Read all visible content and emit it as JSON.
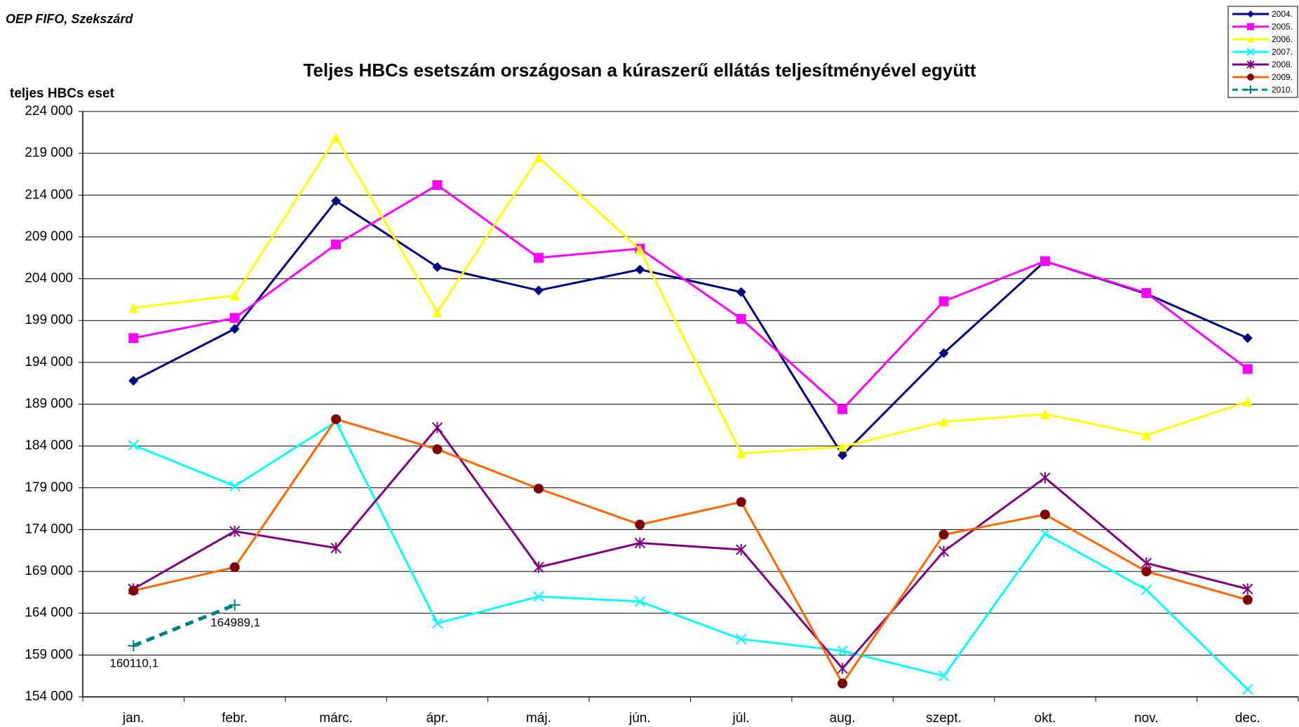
{
  "header": "OEP FIFO, Szekszárd",
  "chart_data": {
    "type": "line",
    "title": "Teljes HBCs esetszám országosan a kúraszerű ellátás teljesítményével együtt",
    "y_label": "teljes HBCs eset",
    "categories": [
      "jan.",
      "febr.",
      "márc.",
      "ápr.",
      "máj.",
      "jún.",
      "júl.",
      "aug.",
      "szept.",
      "okt.",
      "nov.",
      "dec."
    ],
    "ylim": [
      154000,
      224000
    ],
    "yticks": [
      {
        "value": 154000,
        "label": "154 000"
      },
      {
        "value": 159000,
        "label": "159 000"
      },
      {
        "value": 164000,
        "label": "164 000"
      },
      {
        "value": 169000,
        "label": "169 000"
      },
      {
        "value": 174000,
        "label": "174 000"
      },
      {
        "value": 179000,
        "label": "179 000"
      },
      {
        "value": 184000,
        "label": "184 000"
      },
      {
        "value": 189000,
        "label": "189 000"
      },
      {
        "value": 194000,
        "label": "194 000"
      },
      {
        "value": 199000,
        "label": "199 000"
      },
      {
        "value": 204000,
        "label": "204 000"
      },
      {
        "value": 209000,
        "label": "209 000"
      },
      {
        "value": 214000,
        "label": "214 000"
      },
      {
        "value": 219000,
        "label": "219 000"
      },
      {
        "value": 224000,
        "label": "224 000"
      }
    ],
    "grid": true,
    "legend": "top-right",
    "series": [
      {
        "name": "2004.",
        "color": "#000080",
        "marker": "diamond",
        "values": [
          191800,
          198000,
          213300,
          205400,
          202600,
          205100,
          202400,
          182900,
          195100,
          206100,
          202200,
          196900
        ]
      },
      {
        "name": "2005.",
        "color": "#ff00ff",
        "marker": "square",
        "values": [
          196900,
          199300,
          208100,
          215200,
          206500,
          207600,
          199200,
          188400,
          201300,
          206100,
          202300,
          193200
        ]
      },
      {
        "name": "2006.",
        "color": "#ffff00",
        "marker": "triangle",
        "values": [
          200500,
          202000,
          220900,
          200000,
          218500,
          207500,
          183100,
          183900,
          186900,
          187800,
          185300,
          189300
        ]
      },
      {
        "name": "2007.",
        "color": "#00ffff",
        "marker": "x",
        "values": [
          184100,
          179200,
          186900,
          162800,
          166000,
          165400,
          160900,
          159500,
          156500,
          173500,
          166800,
          154900
        ]
      },
      {
        "name": "2008.",
        "color": "#800080",
        "marker": "star",
        "values": [
          166900,
          173800,
          171800,
          186200,
          169500,
          172400,
          171600,
          157400,
          171400,
          180200,
          170000,
          166900
        ]
      },
      {
        "name": "2009.",
        "color": "#ff6600",
        "marker": "circle",
        "values": [
          166700,
          169500,
          187200,
          183600,
          178900,
          174600,
          177300,
          155600,
          173400,
          175800,
          169000,
          165600
        ]
      },
      {
        "name": "2010.",
        "color": "#008080",
        "marker": "plus",
        "line_style": "dashed",
        "values": [
          160110.1,
          164989.1,
          null,
          null,
          null,
          null,
          null,
          null,
          null,
          null,
          null,
          null
        ],
        "value_labels": [
          "160110,1",
          "164989,1",
          null,
          null,
          null,
          null,
          null,
          null,
          null,
          null,
          null,
          null
        ]
      }
    ]
  }
}
